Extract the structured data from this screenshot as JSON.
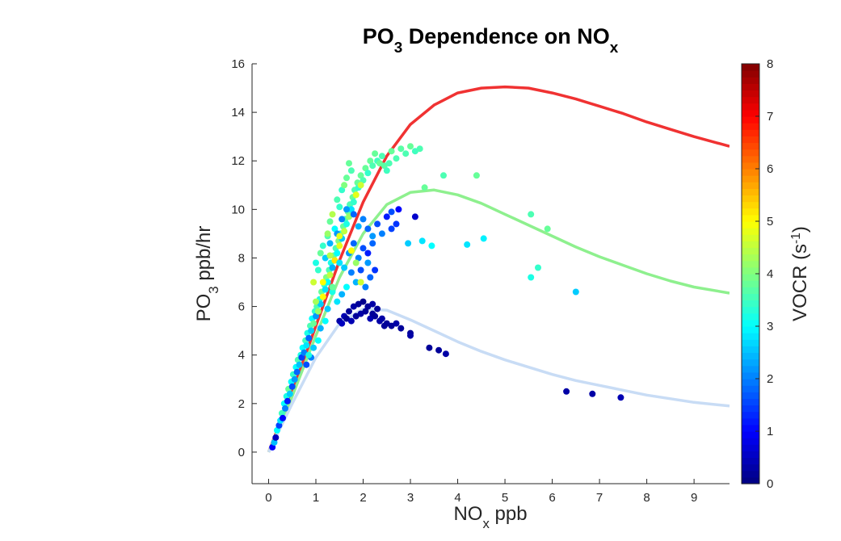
{
  "chart_data": {
    "type": "scatter",
    "title_parts": [
      {
        "text": "PO",
        "sub": false
      },
      {
        "text": "3",
        "sub": true
      },
      {
        "text": " Dependence on NO",
        "sub": false
      },
      {
        "text": "x",
        "sub": true
      }
    ],
    "xlabel_parts": [
      {
        "text": "NO",
        "sub": false
      },
      {
        "text": "x",
        "sub": true
      },
      {
        "text": " ppb",
        "sub": false
      }
    ],
    "ylabel_parts": [
      {
        "text": "PO",
        "sub": false
      },
      {
        "text": "3",
        "sub": true
      },
      {
        "text": " ppb/hr",
        "sub": false
      }
    ],
    "xlim": [
      -0.35,
      9.75
    ],
    "ylim": [
      -1.3,
      16
    ],
    "xticks": [
      0,
      1,
      2,
      3,
      4,
      5,
      6,
      7,
      8,
      9
    ],
    "yticks": [
      0,
      2,
      4,
      6,
      8,
      10,
      12,
      14,
      16
    ],
    "grid": false,
    "colorbar": {
      "label_parts": [
        {
          "text": "VOCR (s",
          "sub": false
        },
        {
          "text": "-1",
          "sup": true
        },
        {
          "text": ")",
          "sub": false
        }
      ],
      "range": [
        0,
        8
      ],
      "ticks": [
        0,
        1,
        2,
        3,
        4,
        5,
        6,
        7,
        8
      ],
      "colormap": "jet"
    },
    "curves": [
      {
        "color": "#f03232",
        "x": [
          0,
          0.5,
          1,
          1.5,
          2,
          2.5,
          3,
          3.5,
          4,
          4.5,
          5,
          5.5,
          6,
          6.5,
          7,
          7.5,
          8,
          8.5,
          9,
          9.75
        ],
        "y": [
          0,
          2.5,
          5.2,
          7.9,
          10.3,
          12.2,
          13.5,
          14.3,
          14.8,
          15.0,
          15.05,
          15.0,
          14.8,
          14.55,
          14.25,
          13.95,
          13.6,
          13.3,
          13.0,
          12.6
        ]
      },
      {
        "color": "#8ef08e",
        "x": [
          0,
          0.5,
          1,
          1.5,
          2,
          2.5,
          3,
          3.5,
          4,
          4.5,
          5,
          5.5,
          6,
          6.5,
          7,
          7.5,
          8,
          8.5,
          9,
          9.75
        ],
        "y": [
          0,
          2.3,
          4.8,
          7.2,
          9.0,
          10.2,
          10.7,
          10.8,
          10.6,
          10.25,
          9.8,
          9.35,
          8.9,
          8.45,
          8.05,
          7.7,
          7.35,
          7.05,
          6.8,
          6.55
        ]
      },
      {
        "color": "#c8dcf5",
        "x": [
          0,
          0.5,
          1,
          1.5,
          2,
          2.5,
          3,
          3.5,
          4,
          4.5,
          5,
          5.5,
          6,
          6.5,
          7,
          7.5,
          8,
          8.5,
          9,
          9.75
        ],
        "y": [
          0,
          2.0,
          3.9,
          5.3,
          5.9,
          5.85,
          5.45,
          5.0,
          4.55,
          4.15,
          3.8,
          3.5,
          3.2,
          2.95,
          2.75,
          2.55,
          2.35,
          2.2,
          2.05,
          1.9
        ]
      }
    ],
    "points": [
      [
        0.08,
        0.2,
        1.0
      ],
      [
        0.12,
        0.4,
        2.5
      ],
      [
        0.15,
        0.6,
        0.5
      ],
      [
        0.18,
        0.9,
        3.0
      ],
      [
        0.22,
        1.1,
        1.5
      ],
      [
        0.25,
        1.3,
        2.8
      ],
      [
        0.28,
        1.6,
        3.5
      ],
      [
        0.3,
        1.4,
        1.0
      ],
      [
        0.33,
        2.0,
        3.0
      ],
      [
        0.35,
        1.8,
        2.0
      ],
      [
        0.38,
        2.3,
        3.2
      ],
      [
        0.4,
        2.1,
        1.2
      ],
      [
        0.42,
        2.6,
        3.8
      ],
      [
        0.45,
        2.4,
        2.6
      ],
      [
        0.48,
        2.9,
        3.0
      ],
      [
        0.5,
        2.7,
        1.6
      ],
      [
        0.52,
        3.2,
        3.4
      ],
      [
        0.55,
        3.0,
        2.2
      ],
      [
        0.58,
        3.5,
        3.0
      ],
      [
        0.6,
        3.3,
        1.8
      ],
      [
        0.62,
        3.8,
        3.6
      ],
      [
        0.65,
        3.6,
        2.5
      ],
      [
        0.68,
        4.0,
        3.2
      ],
      [
        0.7,
        3.9,
        1.5
      ],
      [
        0.72,
        4.3,
        3.0
      ],
      [
        0.75,
        4.1,
        2.0
      ],
      [
        0.78,
        4.6,
        3.5
      ],
      [
        0.8,
        4.4,
        2.8
      ],
      [
        0.82,
        4.9,
        3.2
      ],
      [
        0.85,
        4.7,
        1.8
      ],
      [
        0.88,
        5.2,
        3.6
      ],
      [
        0.9,
        5.0,
        2.6
      ],
      [
        0.92,
        5.5,
        3.0
      ],
      [
        0.95,
        5.3,
        3.8
      ],
      [
        0.98,
        5.8,
        3.4
      ],
      [
        1.0,
        5.6,
        2.2
      ],
      [
        1.02,
        6.0,
        3.6
      ],
      [
        1.05,
        5.8,
        4.2
      ],
      [
        1.08,
        6.3,
        3.2
      ],
      [
        1.1,
        6.1,
        2.6
      ],
      [
        1.12,
        6.6,
        3.8
      ],
      [
        1.15,
        6.4,
        5.0
      ],
      [
        1.18,
        6.9,
        3.4
      ],
      [
        1.2,
        6.7,
        2.8
      ],
      [
        1.22,
        7.2,
        4.0
      ],
      [
        1.25,
        7.0,
        3.0
      ],
      [
        1.28,
        7.5,
        3.6
      ],
      [
        1.3,
        7.3,
        4.5
      ],
      [
        1.32,
        7.8,
        3.2
      ],
      [
        1.35,
        7.6,
        2.4
      ],
      [
        1.38,
        8.1,
        3.8
      ],
      [
        1.4,
        7.9,
        5.2
      ],
      [
        1.42,
        8.4,
        3.6
      ],
      [
        1.45,
        8.2,
        3.0
      ],
      [
        1.48,
        8.7,
        4.0
      ],
      [
        1.5,
        8.5,
        4.8
      ],
      [
        1.52,
        9.0,
        3.4
      ],
      [
        1.55,
        8.8,
        2.6
      ],
      [
        1.58,
        9.3,
        3.8
      ],
      [
        1.6,
        9.1,
        4.5
      ],
      [
        1.62,
        9.6,
        3.6
      ],
      [
        1.65,
        9.4,
        3.2
      ],
      [
        1.68,
        9.9,
        3.8
      ],
      [
        1.7,
        9.7,
        4.2
      ],
      [
        1.72,
        10.2,
        3.6
      ],
      [
        1.75,
        10.0,
        2.8
      ],
      [
        1.78,
        10.5,
        3.8
      ],
      [
        1.8,
        10.3,
        3.4
      ],
      [
        1.82,
        10.8,
        3.6
      ],
      [
        1.85,
        10.6,
        4.0
      ],
      [
        1.88,
        11.1,
        3.8
      ],
      [
        1.9,
        10.9,
        3.4
      ],
      [
        1.95,
        11.4,
        3.8
      ],
      [
        2.0,
        11.2,
        3.6
      ],
      [
        2.05,
        11.7,
        3.8
      ],
      [
        2.1,
        11.5,
        3.4
      ],
      [
        2.15,
        12.0,
        3.8
      ],
      [
        2.2,
        11.8,
        3.6
      ],
      [
        2.25,
        12.3,
        3.8
      ],
      [
        2.3,
        12.0,
        3.5
      ],
      [
        2.35,
        11.9,
        3.8
      ],
      [
        2.4,
        12.2,
        3.6
      ],
      [
        2.45,
        11.8,
        3.7
      ],
      [
        2.5,
        11.6,
        3.5
      ],
      [
        2.55,
        11.9,
        3.6
      ],
      [
        2.6,
        12.4,
        3.8
      ],
      [
        2.7,
        12.1,
        3.6
      ],
      [
        2.8,
        12.5,
        3.7
      ],
      [
        2.9,
        12.3,
        3.6
      ],
      [
        3.0,
        12.6,
        3.8
      ],
      [
        3.1,
        12.4,
        3.5
      ],
      [
        3.2,
        12.5,
        3.6
      ],
      [
        1.05,
        7.5,
        3.4
      ],
      [
        1.1,
        8.2,
        3.8
      ],
      [
        1.0,
        7.8,
        3.2
      ],
      [
        0.95,
        7.0,
        4.6
      ],
      [
        1.15,
        8.5,
        3.4
      ],
      [
        1.25,
        8.9,
        3.6
      ],
      [
        1.3,
        9.5,
        3.8
      ],
      [
        1.35,
        9.8,
        4.4
      ],
      [
        1.45,
        10.4,
        3.6
      ],
      [
        1.55,
        10.8,
        3.4
      ],
      [
        1.65,
        11.3,
        3.8
      ],
      [
        1.75,
        11.6,
        3.6
      ],
      [
        1.6,
        11.0,
        4.0
      ],
      [
        1.7,
        11.9,
        3.8
      ],
      [
        1.5,
        10.1,
        3.4
      ],
      [
        1.4,
        9.2,
        3.0
      ],
      [
        1.2,
        8.0,
        2.6
      ],
      [
        1.3,
        8.6,
        2.4
      ],
      [
        1.45,
        9.0,
        2.2
      ],
      [
        1.55,
        9.6,
        2.0
      ],
      [
        1.65,
        10.0,
        2.2
      ],
      [
        1.8,
        9.8,
        1.8
      ],
      [
        1.9,
        9.3,
        2.4
      ],
      [
        2.0,
        9.6,
        2.0
      ],
      [
        2.1,
        9.2,
        1.8
      ],
      [
        2.2,
        8.9,
        2.2
      ],
      [
        2.3,
        9.4,
        1.6
      ],
      [
        2.4,
        9.0,
        2.0
      ],
      [
        2.5,
        9.7,
        1.2
      ],
      [
        2.6,
        9.9,
        1.6
      ],
      [
        3.1,
        9.7,
        0.6
      ],
      [
        2.75,
        10.0,
        1.0
      ],
      [
        1.7,
        8.2,
        2.2
      ],
      [
        1.8,
        8.6,
        1.8
      ],
      [
        1.9,
        8.0,
        2.0
      ],
      [
        2.0,
        8.4,
        1.6
      ],
      [
        2.1,
        7.8,
        2.2
      ],
      [
        2.15,
        7.2,
        1.8
      ],
      [
        2.05,
        6.8,
        2.0
      ],
      [
        1.95,
        7.5,
        1.6
      ],
      [
        1.85,
        7.0,
        2.4
      ],
      [
        1.75,
        7.4,
        2.0
      ],
      [
        1.6,
        7.6,
        2.6
      ],
      [
        1.5,
        7.8,
        2.8
      ],
      [
        1.65,
        6.8,
        3.0
      ],
      [
        1.55,
        6.5,
        2.4
      ],
      [
        1.45,
        6.2,
        2.8
      ],
      [
        1.35,
        6.6,
        3.2
      ],
      [
        1.25,
        5.9,
        2.6
      ],
      [
        1.2,
        5.4,
        3.0
      ],
      [
        1.1,
        5.1,
        2.4
      ],
      [
        1.05,
        4.6,
        3.0
      ],
      [
        0.95,
        4.3,
        2.6
      ],
      [
        0.9,
        3.9,
        2.0
      ],
      [
        0.85,
        4.0,
        3.2
      ],
      [
        0.8,
        3.6,
        1.6
      ],
      [
        1.6,
        5.6,
        0.4
      ],
      [
        1.7,
        5.8,
        0.2
      ],
      [
        1.8,
        6.0,
        0.3
      ],
      [
        1.9,
        6.1,
        0.2
      ],
      [
        2.0,
        6.2,
        0.1
      ],
      [
        2.1,
        6.0,
        0.2
      ],
      [
        2.2,
        6.1,
        0.3
      ],
      [
        2.3,
        5.9,
        0.2
      ],
      [
        1.5,
        5.4,
        0.3
      ],
      [
        1.55,
        5.3,
        0.5
      ],
      [
        1.65,
        5.5,
        0.2
      ],
      [
        1.75,
        5.4,
        0.4
      ],
      [
        1.85,
        5.6,
        0.2
      ],
      [
        1.95,
        5.7,
        0.3
      ],
      [
        2.05,
        5.8,
        0.2
      ],
      [
        2.15,
        5.5,
        0.4
      ],
      [
        2.25,
        5.6,
        0.2
      ],
      [
        2.4,
        5.5,
        0.3
      ],
      [
        2.5,
        5.3,
        0.2
      ],
      [
        2.6,
        5.2,
        0.2
      ],
      [
        2.7,
        5.3,
        0.3
      ],
      [
        2.8,
        5.1,
        0.2
      ],
      [
        3.0,
        4.9,
        0.2
      ],
      [
        3.0,
        4.8,
        0.3
      ],
      [
        3.4,
        4.3,
        0.2
      ],
      [
        3.6,
        4.2,
        0.2
      ],
      [
        3.75,
        4.05,
        0.3
      ],
      [
        2.2,
        5.7,
        0.2
      ],
      [
        2.35,
        5.4,
        0.3
      ],
      [
        2.45,
        5.2,
        0.2
      ],
      [
        3.3,
        10.9,
        3.8
      ],
      [
        3.7,
        11.4,
        3.6
      ],
      [
        4.4,
        11.4,
        3.8
      ],
      [
        2.95,
        8.6,
        2.6
      ],
      [
        3.25,
        8.7,
        2.8
      ],
      [
        3.45,
        8.5,
        3.0
      ],
      [
        4.2,
        8.55,
        2.8
      ],
      [
        4.55,
        8.8,
        2.9
      ],
      [
        5.55,
        9.8,
        3.6
      ],
      [
        5.9,
        9.2,
        3.8
      ],
      [
        5.7,
        7.6,
        3.4
      ],
      [
        5.55,
        7.2,
        3.2
      ],
      [
        6.5,
        6.6,
        2.6
      ],
      [
        6.3,
        2.5,
        0.3
      ],
      [
        6.85,
        2.4,
        0.3
      ],
      [
        7.45,
        2.25,
        0.4
      ],
      [
        2.6,
        9.2,
        1.5
      ],
      [
        2.7,
        9.4,
        1.4
      ],
      [
        2.2,
        8.6,
        1.8
      ],
      [
        2.1,
        8.2,
        1.2
      ],
      [
        2.25,
        7.5,
        1.4
      ],
      [
        1.95,
        7.0,
        4.6
      ],
      [
        1.85,
        7.8,
        4.2
      ],
      [
        1.75,
        8.3,
        5.0
      ],
      [
        1.5,
        8.9,
        4.8
      ],
      [
        1.3,
        8.1,
        4.4
      ],
      [
        1.15,
        7.0,
        5.0
      ],
      [
        1.0,
        6.2,
        4.3
      ],
      [
        1.85,
        10.6,
        4.8
      ],
      [
        1.95,
        11.0,
        4.6
      ],
      [
        1.25,
        9.0,
        4.2
      ],
      [
        1.35,
        6.8,
        3.8
      ]
    ]
  }
}
